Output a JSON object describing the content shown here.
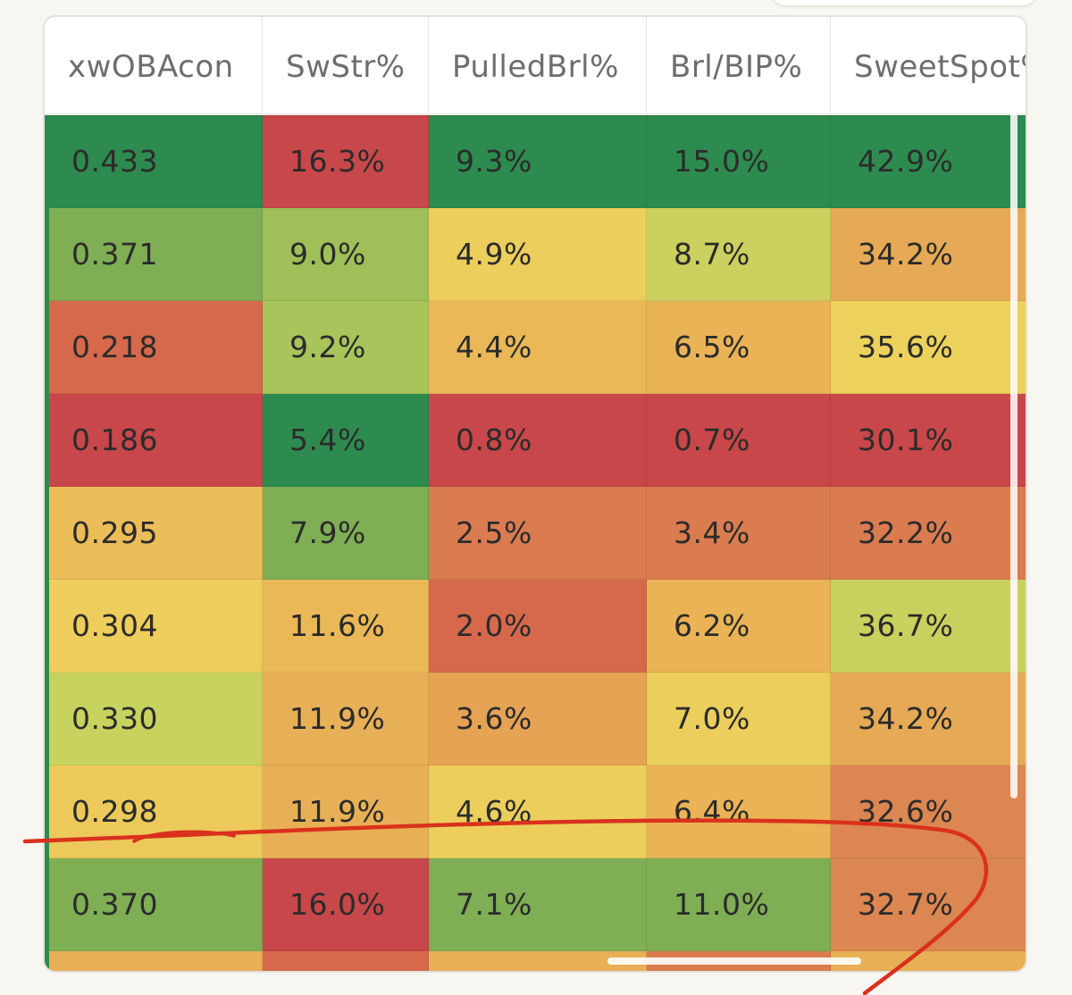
{
  "table": {
    "columns": [
      "xwOBAcon",
      "SwStr%",
      "PulledBrl%",
      "Brl/BIP%",
      "SweetSpot%"
    ],
    "rows": [
      {
        "cells": [
          "0.433",
          "16.3%",
          "9.3%",
          "15.0%",
          "42.9%"
        ],
        "colors": [
          "#2e8b4f",
          "#c8474a",
          "#2e8b4f",
          "#2e8b4f",
          "#2e8b4f"
        ]
      },
      {
        "cells": [
          "0.371",
          "9.0%",
          "4.9%",
          "8.7%",
          "34.2%"
        ],
        "colors": [
          "#7fae55",
          "#9fbf58",
          "#ecce5c",
          "#ccd05e",
          "#e6a955"
        ]
      },
      {
        "cells": [
          "0.218",
          "9.2%",
          "4.4%",
          "6.5%",
          "35.6%"
        ],
        "colors": [
          "#d6694c",
          "#a9c45b",
          "#eab857",
          "#e9b356",
          "#ecd25c"
        ]
      },
      {
        "cells": [
          "0.186",
          "5.4%",
          "0.8%",
          "0.7%",
          "30.1%"
        ],
        "colors": [
          "#c8474a",
          "#2e8b4f",
          "#c8474a",
          "#c8474a",
          "#c8474a"
        ]
      },
      {
        "cells": [
          "0.295",
          "7.9%",
          "2.5%",
          "3.4%",
          "32.2%"
        ],
        "colors": [
          "#ebbd58",
          "#7fae55",
          "#da7c50",
          "#da7c50",
          "#da7c50"
        ]
      },
      {
        "cells": [
          "0.304",
          "11.6%",
          "2.0%",
          "6.2%",
          "36.7%"
        ],
        "colors": [
          "#edcd5c",
          "#eab857",
          "#d6694c",
          "#e9b356",
          "#c9d15e"
        ]
      },
      {
        "cells": [
          "0.330",
          "11.9%",
          "3.6%",
          "7.0%",
          "34.2%"
        ],
        "colors": [
          "#c8d25e",
          "#e8b056",
          "#e6a354",
          "#ecce5c",
          "#e6a955"
        ]
      },
      {
        "cells": [
          "0.298",
          "11.9%",
          "4.6%",
          "6.4%",
          "32.6%"
        ],
        "colors": [
          "#ecc95a",
          "#e8b056",
          "#ecce5c",
          "#e9b356",
          "#dc8651"
        ]
      },
      {
        "cells": [
          "0.370",
          "16.0%",
          "7.1%",
          "11.0%",
          "32.7%"
        ],
        "colors": [
          "#7fae55",
          "#c8474a",
          "#7fae55",
          "#7fae55",
          "#dc8651"
        ]
      },
      {
        "cells": [
          "",
          "",
          "",
          "",
          ""
        ],
        "colors": [
          "#e8b056",
          "#d6694c",
          "#e8b056",
          "#da7c50",
          "#e8b056"
        ]
      }
    ]
  },
  "annotation": {
    "color": "#d9311e",
    "shape": "hand-drawn-circle"
  }
}
